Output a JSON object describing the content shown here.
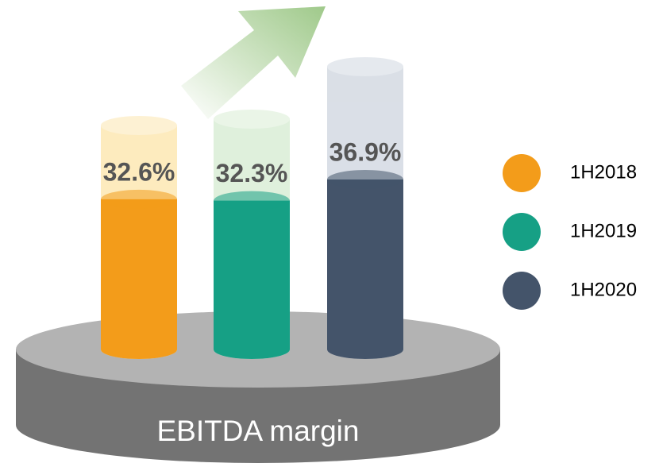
{
  "chart_data": {
    "type": "bar",
    "label": "EBITDA margin",
    "categories": [
      "1H2018",
      "1H2019",
      "1H2020"
    ],
    "values": [
      32.6,
      32.3,
      36.9
    ],
    "value_labels": [
      "32.6%",
      "32.3%",
      "36.9%"
    ],
    "colors": [
      "#f39c1a",
      "#16a085",
      "#44546a"
    ]
  }
}
